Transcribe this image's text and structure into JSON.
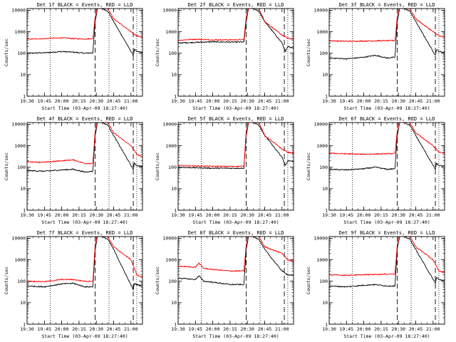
{
  "figure": {
    "ylabel": "Counts/sec",
    "xlabel": "Start Time (03-Apr-09 18:27:40)",
    "ytick_labels": [
      "1",
      "10",
      "100",
      "1000",
      "10000"
    ],
    "xtick_labels": [
      "19:30",
      "19:45",
      "20:00",
      "20:15",
      "20:30",
      "20:45",
      "21:00"
    ],
    "colors": {
      "events": "#000000",
      "lld": "#ff0000",
      "axes": "#000000"
    }
  },
  "chart_data": [
    {
      "type": "line",
      "title": "Det 1f BLACK = Events, RED = LLD",
      "xlabel": "Start Time (03-Apr-09 18:27:40)",
      "ylabel": "Counts/sec",
      "y_scale": "log",
      "ylim": [
        1,
        12000
      ],
      "xlim": [
        "19:30",
        "21:10"
      ],
      "vlines_dotted": [
        "19:50",
        "20:41",
        "21:05"
      ],
      "vlines_dashed": [
        "20:29",
        "21:02"
      ],
      "series": [
        {
          "name": "Events",
          "x": [
            "19:30",
            "19:45",
            "20:00",
            "20:10",
            "20:20",
            "20:27",
            "20:29",
            "20:31",
            "20:35",
            "20:40",
            "20:45",
            "21:02",
            "21:03",
            "21:05",
            "21:10"
          ],
          "values": [
            100,
            105,
            120,
            112,
            100,
            105,
            3000,
            12000,
            12000,
            9000,
            3000,
            80,
            150,
            120,
            110
          ]
        },
        {
          "name": "LLD",
          "x": [
            "19:30",
            "19:45",
            "20:00",
            "20:10",
            "20:20",
            "20:27",
            "20:29",
            "20:31",
            "20:35",
            "20:40",
            "20:45",
            "21:00",
            "21:05",
            "21:10"
          ],
          "values": [
            450,
            480,
            520,
            480,
            460,
            480,
            5000,
            12000,
            12000,
            12000,
            4000,
            1000,
            650,
            550
          ]
        }
      ]
    },
    {
      "type": "line",
      "title": "Det 2f BLACK = Events, RED = LLD",
      "xlabel": "Start Time (03-Apr-09 18:27:40)",
      "ylabel": "Counts/sec",
      "y_scale": "log",
      "ylim": [
        1,
        12000
      ],
      "xlim": [
        "19:30",
        "21:10"
      ],
      "vlines_dotted": [
        "19:50",
        "20:41",
        "21:05"
      ],
      "vlines_dashed": [
        "20:29",
        "21:02"
      ],
      "series": [
        {
          "name": "Events",
          "x": [
            "19:30",
            "19:45",
            "20:00",
            "20:15",
            "20:27",
            "20:29",
            "20:31",
            "20:35",
            "20:40",
            "20:45",
            "21:00",
            "21:03",
            "21:05",
            "21:10"
          ],
          "values": [
            300,
            320,
            340,
            330,
            330,
            3000,
            12000,
            12000,
            9000,
            3000,
            300,
            120,
            200,
            180
          ]
        },
        {
          "name": "LLD",
          "x": [
            "19:30",
            "19:45",
            "20:00",
            "20:15",
            "20:27",
            "20:29",
            "20:31",
            "20:35",
            "20:40",
            "20:45",
            "21:00",
            "21:05",
            "21:10"
          ],
          "values": [
            400,
            450,
            420,
            420,
            430,
            5000,
            12000,
            12000,
            12000,
            3000,
            700,
            500,
            450
          ]
        }
      ]
    },
    {
      "type": "line",
      "title": "Det 3f BLACK = Events, RED = LLD",
      "xlabel": "Start Time (03-Apr-09 18:27:40)",
      "ylabel": "Counts/sec",
      "y_scale": "log",
      "ylim": [
        1,
        12000
      ],
      "xlim": [
        "19:30",
        "21:10"
      ],
      "vlines_dotted": [
        "19:50",
        "20:41",
        "21:05"
      ],
      "vlines_dashed": [
        "20:29",
        "21:02"
      ],
      "series": [
        {
          "name": "Events",
          "x": [
            "19:30",
            "19:45",
            "20:00",
            "20:10",
            "20:20",
            "20:27",
            "20:29",
            "20:31",
            "20:35",
            "20:40",
            "20:45",
            "21:02",
            "21:03",
            "21:05",
            "21:10"
          ],
          "values": [
            60,
            55,
            65,
            80,
            60,
            65,
            3000,
            12000,
            12000,
            9000,
            3000,
            80,
            150,
            120,
            110
          ]
        },
        {
          "name": "LLD",
          "x": [
            "19:30",
            "19:45",
            "20:00",
            "20:15",
            "20:27",
            "20:29",
            "20:31",
            "20:35",
            "20:40",
            "20:45",
            "21:00",
            "21:05",
            "21:10"
          ],
          "values": [
            380,
            360,
            370,
            380,
            390,
            5000,
            12000,
            12000,
            12000,
            4000,
            1000,
            650,
            550
          ]
        }
      ]
    },
    {
      "type": "line",
      "title": "Det 4f BLACK = Events, RED = LLD",
      "xlabel": "Start Time (03-Apr-09 18:27:40)",
      "ylabel": "Counts/sec",
      "y_scale": "log",
      "ylim": [
        1,
        12000
      ],
      "xlim": [
        "19:30",
        "21:10"
      ],
      "vlines_dotted": [
        "19:50",
        "20:41",
        "21:05"
      ],
      "vlines_dashed": [
        "20:29",
        "21:02"
      ],
      "series": [
        {
          "name": "Events",
          "x": [
            "19:30",
            "19:45",
            "20:00",
            "20:10",
            "20:20",
            "20:27",
            "20:29",
            "20:31",
            "20:35",
            "20:40",
            "20:45",
            "21:02",
            "21:03",
            "21:05",
            "21:10"
          ],
          "values": [
            70,
            65,
            75,
            80,
            60,
            65,
            3000,
            12000,
            12000,
            9000,
            3000,
            80,
            150,
            120,
            110
          ]
        },
        {
          "name": "LLD",
          "x": [
            "19:30",
            "19:45",
            "20:00",
            "20:10",
            "20:20",
            "20:27",
            "20:29",
            "20:31",
            "20:35",
            "20:40",
            "20:45",
            "21:00",
            "21:05",
            "21:10"
          ],
          "values": [
            180,
            170,
            200,
            220,
            150,
            150,
            5000,
            12000,
            12000,
            12000,
            4000,
            1000,
            400,
            300
          ]
        }
      ]
    },
    {
      "type": "line",
      "title": "Det 5f BLACK = Events, RED = LLD",
      "xlabel": "Start Time (03-Apr-09 18:27:40)",
      "ylabel": "Counts/sec",
      "y_scale": "log",
      "ylim": [
        1,
        12000
      ],
      "xlim": [
        "19:30",
        "21:10"
      ],
      "vlines_dotted": [
        "19:50",
        "20:41",
        "21:05"
      ],
      "vlines_dashed": [
        "20:29",
        "21:02"
      ],
      "series": [
        {
          "name": "Events",
          "x": [
            "19:30",
            "19:45",
            "20:00",
            "20:15",
            "20:27",
            "20:29",
            "20:31",
            "20:35",
            "20:40",
            "20:45",
            "21:00",
            "21:03",
            "21:05",
            "21:10"
          ],
          "values": [
            100,
            95,
            90,
            90,
            90,
            3000,
            12000,
            12000,
            9000,
            3000,
            300,
            120,
            200,
            180
          ]
        },
        {
          "name": "LLD",
          "x": [
            "19:30",
            "19:45",
            "20:00",
            "20:15",
            "20:27",
            "20:29",
            "20:31",
            "20:35",
            "20:40",
            "20:45",
            "21:00",
            "21:05",
            "21:10"
          ],
          "values": [
            120,
            115,
            110,
            110,
            110,
            5000,
            12000,
            12000,
            12000,
            3000,
            700,
            500,
            450
          ]
        }
      ]
    },
    {
      "type": "line",
      "title": "Det 6f BLACK = Events, RED = LLD",
      "xlabel": "Start Time (03-Apr-09 18:27:40)",
      "ylabel": "Counts/sec",
      "y_scale": "log",
      "ylim": [
        1,
        12000
      ],
      "xlim": [
        "19:30",
        "21:10"
      ],
      "vlines_dotted": [
        "19:50",
        "20:41",
        "21:05"
      ],
      "vlines_dashed": [
        "20:29",
        "21:02"
      ],
      "series": [
        {
          "name": "Events",
          "x": [
            "19:30",
            "19:45",
            "20:00",
            "20:10",
            "20:20",
            "20:27",
            "20:29",
            "20:31",
            "20:35",
            "20:40",
            "20:45",
            "21:02",
            "21:03",
            "21:05",
            "21:10"
          ],
          "values": [
            80,
            75,
            85,
            100,
            80,
            85,
            3000,
            12000,
            12000,
            9000,
            3000,
            80,
            150,
            120,
            110
          ]
        },
        {
          "name": "LLD",
          "x": [
            "19:30",
            "19:45",
            "20:00",
            "20:15",
            "20:27",
            "20:29",
            "20:31",
            "20:35",
            "20:40",
            "20:45",
            "21:00",
            "21:05",
            "21:10"
          ],
          "values": [
            450,
            420,
            400,
            420,
            430,
            5000,
            12000,
            12000,
            12000,
            4000,
            1000,
            500,
            450
          ]
        }
      ]
    },
    {
      "type": "line",
      "title": "Det 7f BLACK = Events, RED = LLD",
      "xlabel": "Start Time (03-Apr-09 18:27:40)",
      "ylabel": "Counts/sec",
      "y_scale": "log",
      "ylim": [
        1,
        12000
      ],
      "xlim": [
        "19:30",
        "21:10"
      ],
      "vlines_dotted": [
        "19:50",
        "20:41",
        "21:05"
      ],
      "vlines_dashed": [
        "20:29",
        "21:02"
      ],
      "series": [
        {
          "name": "Events",
          "x": [
            "19:30",
            "19:45",
            "20:00",
            "20:10",
            "20:20",
            "20:27",
            "20:29",
            "20:31",
            "20:35",
            "20:40",
            "20:45",
            "21:02",
            "21:03",
            "21:05",
            "21:10"
          ],
          "values": [
            60,
            55,
            75,
            80,
            55,
            55,
            3000,
            12000,
            12000,
            9000,
            3000,
            40,
            80,
            70,
            60
          ]
        },
        {
          "name": "LLD",
          "x": [
            "19:30",
            "19:45",
            "20:00",
            "20:10",
            "20:20",
            "20:27",
            "20:29",
            "20:31",
            "20:35",
            "20:40",
            "20:45",
            "21:00",
            "21:05",
            "21:10"
          ],
          "values": [
            100,
            95,
            120,
            120,
            100,
            100,
            5000,
            12000,
            12000,
            12000,
            4000,
            1000,
            200,
            150
          ]
        }
      ]
    },
    {
      "type": "line",
      "title": "Det 8f BLACK = Events, RED = LLD",
      "xlabel": "Start Time (03-Apr-09 18:27:40)",
      "ylabel": "Counts/sec",
      "y_scale": "log",
      "ylim": [
        1,
        12000
      ],
      "xlim": [
        "19:30",
        "21:10"
      ],
      "vlines_dotted": [
        "19:50",
        "20:41",
        "21:05"
      ],
      "vlines_dashed": [
        "20:29",
        "21:02"
      ],
      "series": [
        {
          "name": "Events",
          "x": [
            "19:30",
            "19:45",
            "19:48",
            "19:52",
            "20:00",
            "20:15",
            "20:27",
            "20:29",
            "20:31",
            "20:35",
            "20:40",
            "20:45",
            "21:00",
            "21:05",
            "21:10"
          ],
          "values": [
            140,
            120,
            180,
            100,
            90,
            70,
            70,
            3000,
            12000,
            12000,
            9000,
            3000,
            300,
            200,
            180
          ]
        },
        {
          "name": "LLD",
          "x": [
            "19:30",
            "19:45",
            "19:48",
            "19:52",
            "20:00",
            "20:15",
            "20:27",
            "20:29",
            "20:31",
            "20:35",
            "20:40",
            "20:45",
            "21:00",
            "21:05",
            "21:10"
          ],
          "values": [
            500,
            450,
            700,
            400,
            350,
            300,
            300,
            5000,
            12000,
            12000,
            12000,
            4000,
            2000,
            1000,
            800
          ]
        }
      ]
    },
    {
      "type": "line",
      "title": "Det 9f BLACK = Events, RED = LLD",
      "xlabel": "Start Time (03-Apr-09 18:27:40)",
      "ylabel": "Counts/sec",
      "y_scale": "log",
      "ylim": [
        1,
        12000
      ],
      "xlim": [
        "19:30",
        "21:10"
      ],
      "vlines_dotted": [
        "19:50",
        "20:41",
        "21:05"
      ],
      "vlines_dashed": [
        "20:29",
        "21:02"
      ],
      "series": [
        {
          "name": "Events",
          "x": [
            "19:30",
            "19:45",
            "20:00",
            "20:10",
            "20:20",
            "20:27",
            "20:29",
            "20:31",
            "20:35",
            "20:40",
            "20:45",
            "21:02",
            "21:03",
            "21:05",
            "21:10"
          ],
          "values": [
            60,
            55,
            65,
            70,
            60,
            60,
            3000,
            12000,
            12000,
            9000,
            3000,
            80,
            150,
            120,
            110
          ]
        },
        {
          "name": "LLD",
          "x": [
            "19:30",
            "19:45",
            "20:00",
            "20:15",
            "20:27",
            "20:29",
            "20:31",
            "20:35",
            "20:40",
            "20:45",
            "21:00",
            "21:05",
            "21:10"
          ],
          "values": [
            200,
            190,
            200,
            210,
            220,
            5000,
            12000,
            12000,
            12000,
            4000,
            1000,
            300,
            250
          ]
        }
      ]
    }
  ]
}
